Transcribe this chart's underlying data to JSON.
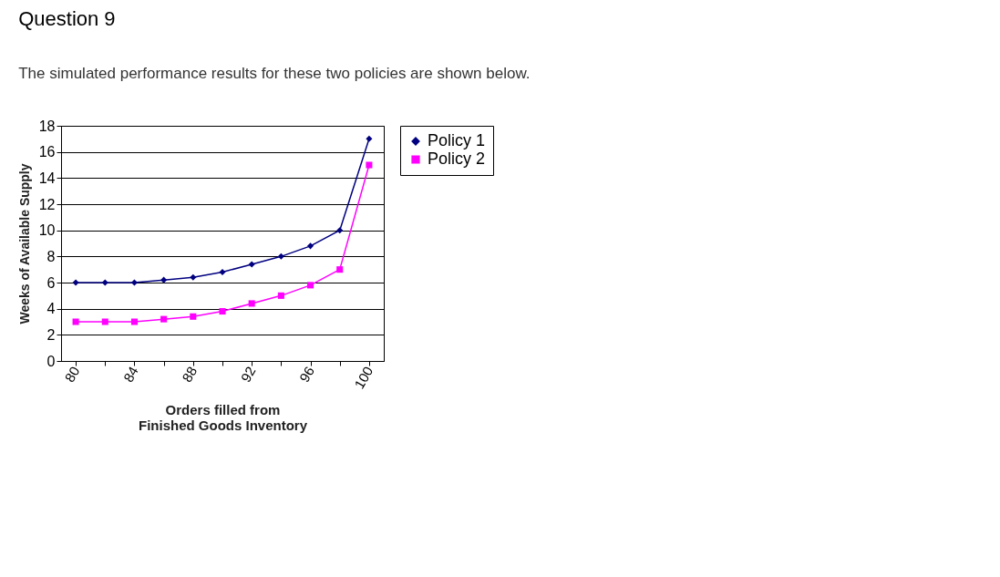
{
  "chart_data": {
    "type": "line",
    "title": "Question 9",
    "annotations": [
      "The simulated performance results for these two policies are shown below."
    ],
    "xlabel": "Orders filled from\nFinished Goods Inventory",
    "ylabel": "Weeks of Available Supply",
    "x": [
      80,
      82,
      84,
      86,
      88,
      90,
      92,
      94,
      96,
      98,
      100
    ],
    "series": [
      {
        "name": "Policy 1",
        "color": "#000080",
        "marker": "diamond",
        "values": [
          6,
          6,
          6,
          6.2,
          6.4,
          6.8,
          7.4,
          8,
          8.8,
          10,
          17
        ]
      },
      {
        "name": "Policy 2",
        "color": "#ff00ff",
        "marker": "square",
        "values": [
          3,
          3,
          3,
          3.2,
          3.4,
          3.8,
          4.4,
          5,
          5.8,
          7,
          15
        ]
      }
    ],
    "xlim": [
      79,
      101
    ],
    "xticks": [
      80,
      {
        "value": 82,
        "label": null
      },
      84,
      {
        "value": 86,
        "label": null
      },
      88,
      {
        "value": 90,
        "label": null
      },
      92,
      {
        "value": 94,
        "label": null
      },
      96,
      {
        "value": 98,
        "label": null
      },
      100
    ],
    "ylim": [
      0,
      18
    ],
    "yticks": [
      0,
      2,
      4,
      6,
      8,
      10,
      12,
      14,
      16,
      18
    ],
    "grid": "y",
    "legend": "right",
    "line_style": "solid"
  }
}
